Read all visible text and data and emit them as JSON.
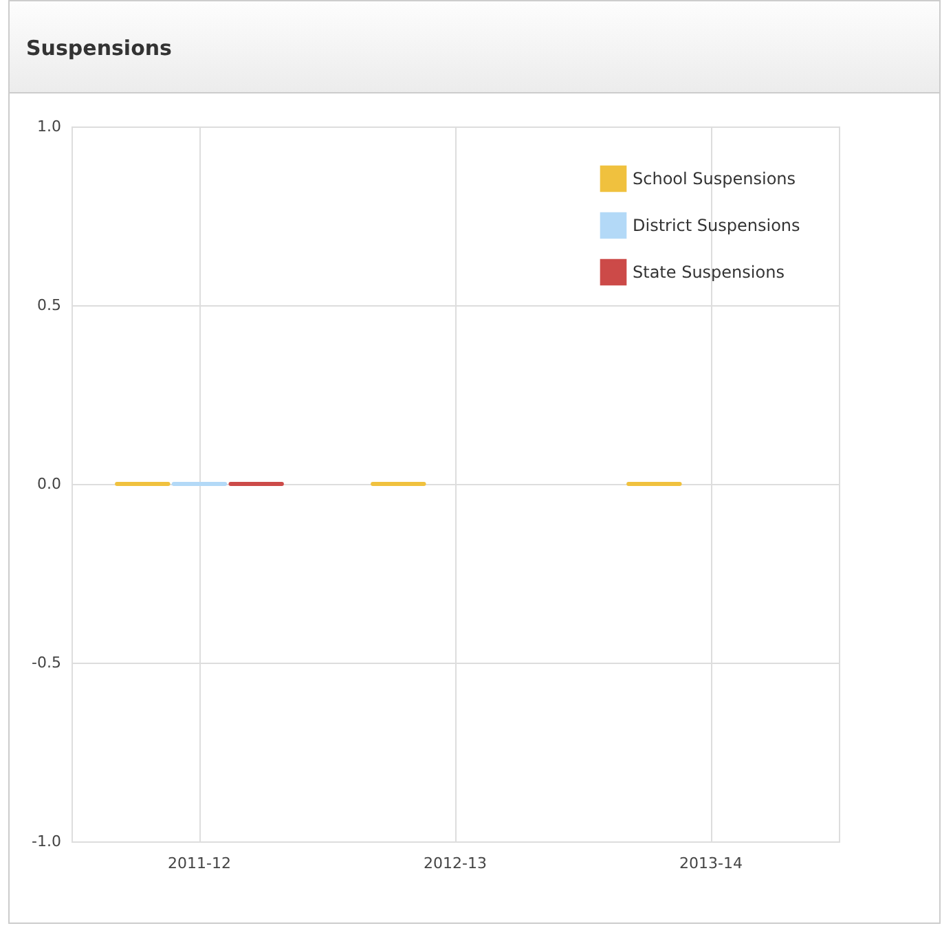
{
  "chart_data": {
    "type": "bar",
    "title": "Suspensions",
    "categories": [
      "2011-12",
      "2012-13",
      "2013-14"
    ],
    "series": [
      {
        "name": "School Suspensions",
        "color": "#f0c13e",
        "values": [
          0,
          0,
          0
        ]
      },
      {
        "name": "District Suspensions",
        "color": "#b3d9f7",
        "values": [
          0,
          null,
          null
        ]
      },
      {
        "name": "State Suspensions",
        "color": "#cc4a48",
        "values": [
          0,
          null,
          null
        ]
      }
    ],
    "ylim": [
      -1,
      1
    ],
    "yticks": [
      {
        "value": -1,
        "label": "-1.0"
      },
      {
        "value": -0.5,
        "label": "-0.5"
      },
      {
        "value": 0,
        "label": "0.0"
      },
      {
        "value": 0.5,
        "label": "0.5"
      },
      {
        "value": 1,
        "label": "1.0"
      }
    ],
    "grid": true,
    "legend": "top right"
  }
}
